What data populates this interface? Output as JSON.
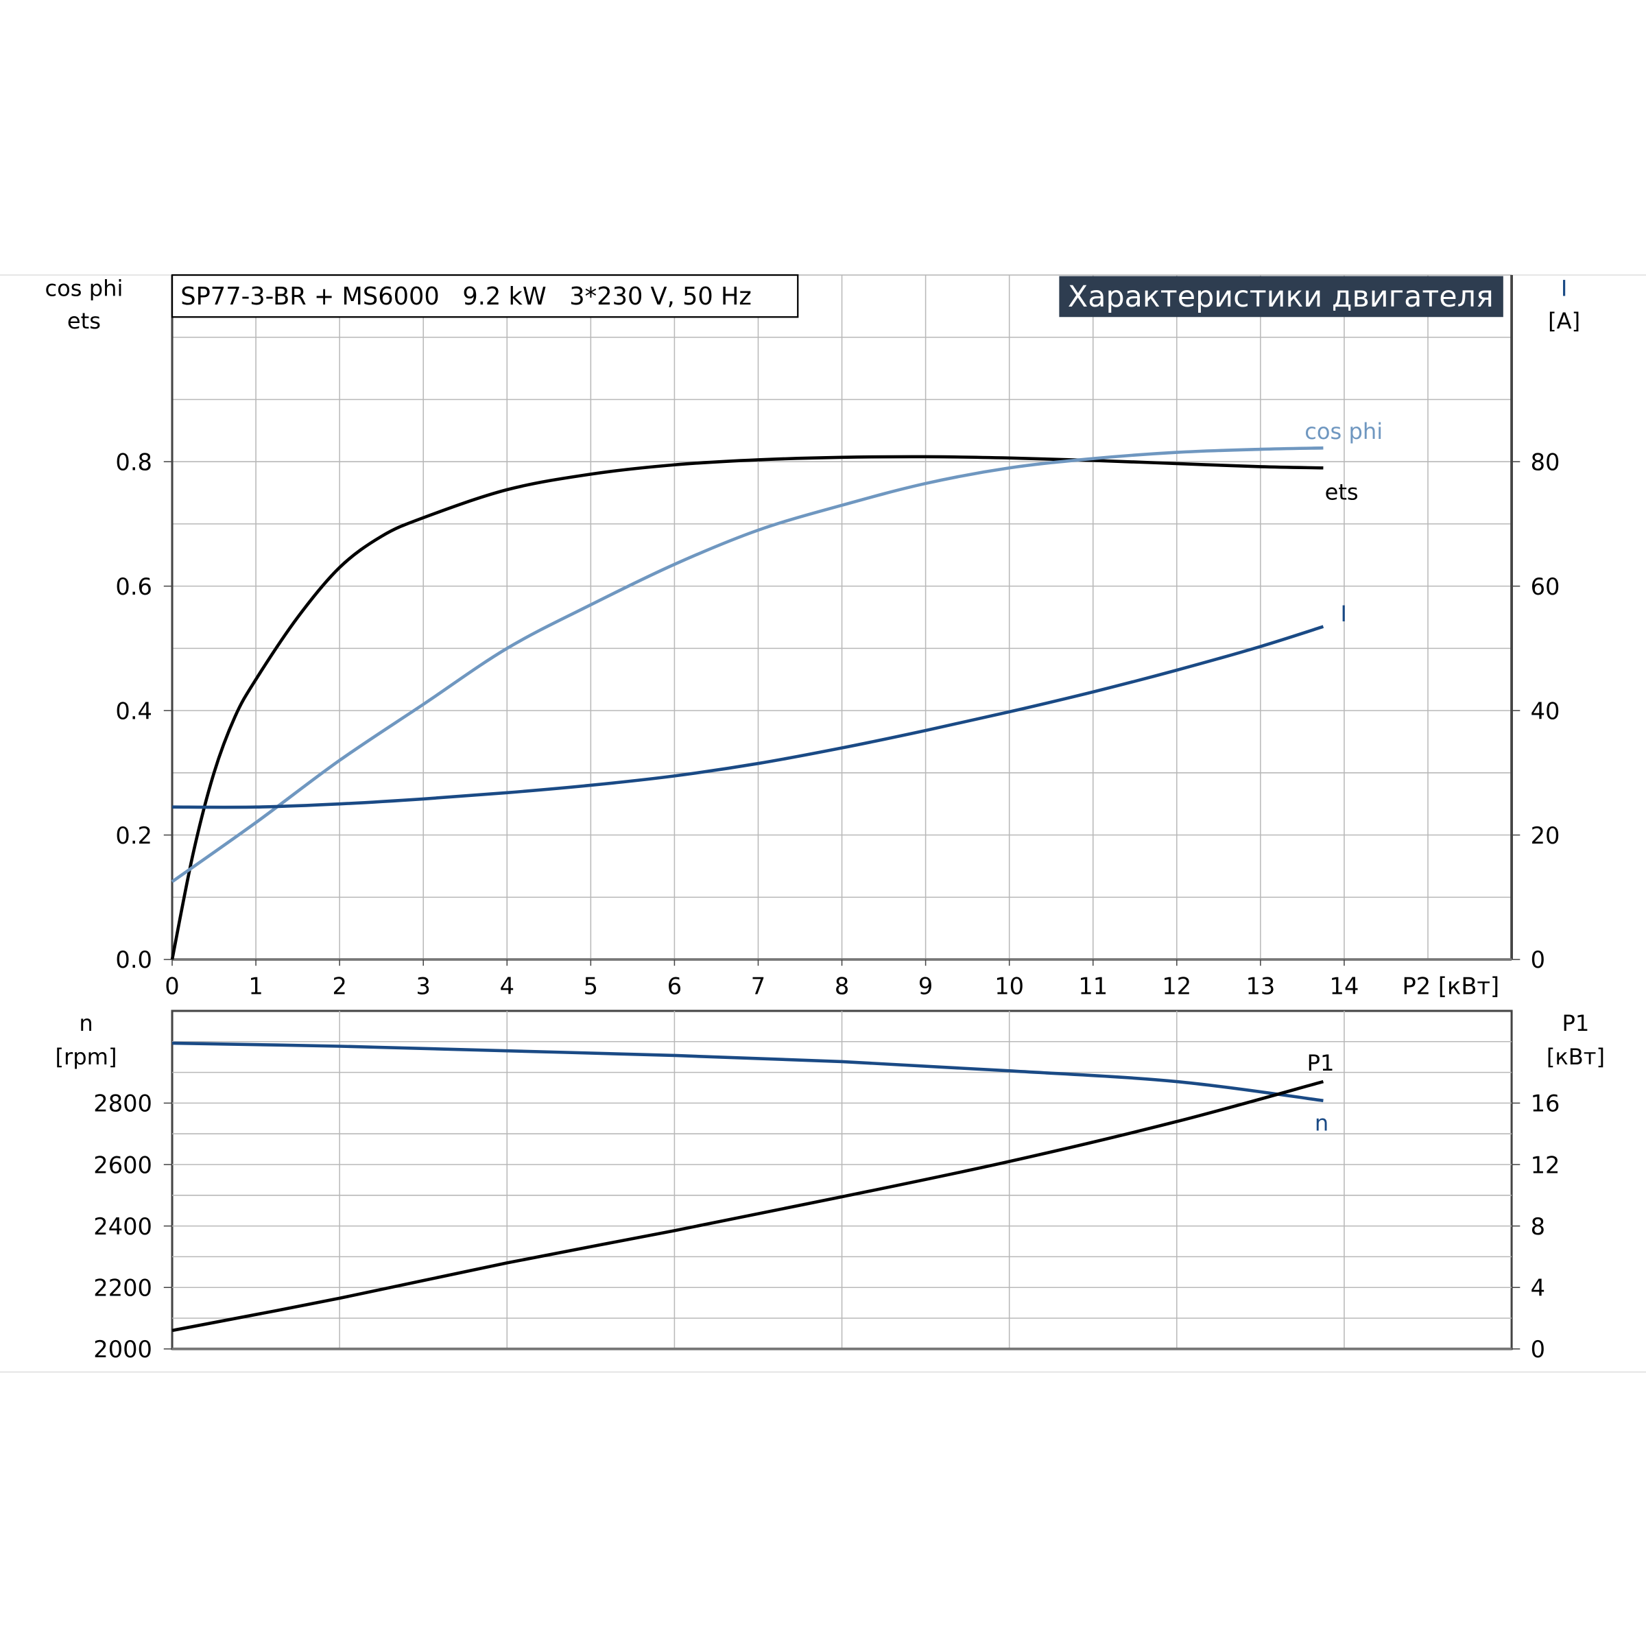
{
  "chart_data": [
    {
      "type": "line",
      "title": "SP77-3-BR + MS6000   9.2 kW   3*230 V, 50 Hz",
      "banner": "Характеристики двигателя",
      "xlabel": "P2 [кВт]",
      "xlim": [
        0,
        16
      ],
      "xticks": [
        "0",
        "1",
        "2",
        "3",
        "4",
        "5",
        "6",
        "7",
        "8",
        "9",
        "10",
        "11",
        "12",
        "13",
        "14"
      ],
      "ylabel_left": [
        "cos phi",
        "ets"
      ],
      "ylim_left": [
        0,
        1.1
      ],
      "yticks_left": [
        "0.0",
        "0.2",
        "0.4",
        "0.6",
        "0.8"
      ],
      "ylabel_right": [
        "I",
        "[A]"
      ],
      "ylim_right": [
        0,
        110
      ],
      "yticks_right": [
        "0",
        "20",
        "40",
        "60",
        "80"
      ],
      "grid": true,
      "series": [
        {
          "name": "ets",
          "axis": "left",
          "color": "#000000",
          "x": [
            0,
            0.25,
            0.5,
            0.75,
            1,
            1.5,
            2,
            2.5,
            3,
            4,
            5,
            6,
            7,
            8,
            9,
            10,
            11,
            12,
            13,
            13.75
          ],
          "y": [
            0,
            0.17,
            0.3,
            0.39,
            0.45,
            0.55,
            0.63,
            0.68,
            0.71,
            0.755,
            0.78,
            0.795,
            0.803,
            0.807,
            0.808,
            0.806,
            0.802,
            0.797,
            0.792,
            0.79
          ]
        },
        {
          "name": "cos phi",
          "axis": "left",
          "color": "#6f97c0",
          "x": [
            0,
            1,
            2,
            3,
            4,
            5,
            6,
            7,
            8,
            9,
            10,
            11,
            12,
            13,
            13.75
          ],
          "y": [
            0.125,
            0.22,
            0.32,
            0.41,
            0.5,
            0.57,
            0.635,
            0.69,
            0.73,
            0.765,
            0.79,
            0.805,
            0.815,
            0.82,
            0.822
          ]
        },
        {
          "name": "I",
          "axis": "right",
          "color": "#1a4a85",
          "x": [
            0,
            1,
            2,
            3,
            4,
            5,
            6,
            7,
            8,
            9,
            10,
            11,
            12,
            13,
            13.75
          ],
          "y": [
            24.5,
            24.5,
            25,
            25.8,
            26.8,
            28,
            29.5,
            31.5,
            34,
            36.8,
            39.8,
            43,
            46.5,
            50.3,
            53.5
          ]
        }
      ]
    },
    {
      "type": "line",
      "xlim": [
        0,
        16
      ],
      "ylabel_left": [
        "n",
        "[rpm]"
      ],
      "ylim_left": [
        2000,
        3100
      ],
      "yticks_left": [
        "2000",
        "2200",
        "2400",
        "2600",
        "2800"
      ],
      "ylabel_right": [
        "P1",
        "[кВт]"
      ],
      "ylim_right": [
        0,
        22
      ],
      "yticks_right": [
        "0",
        "4",
        "8",
        "12",
        "16"
      ],
      "grid": true,
      "series": [
        {
          "name": "n",
          "axis": "left",
          "color": "#1a4a85",
          "x": [
            0,
            2,
            4,
            6,
            8,
            10,
            12,
            13.75
          ],
          "y": [
            2995,
            2985,
            2970,
            2955,
            2935,
            2905,
            2870,
            2808
          ]
        },
        {
          "name": "P1",
          "axis": "right",
          "color": "#000000",
          "x": [
            0,
            2,
            4,
            6,
            8,
            10,
            12,
            13.75
          ],
          "y": [
            1.2,
            3.3,
            5.6,
            7.7,
            9.9,
            12.2,
            14.8,
            17.4
          ]
        }
      ]
    }
  ]
}
